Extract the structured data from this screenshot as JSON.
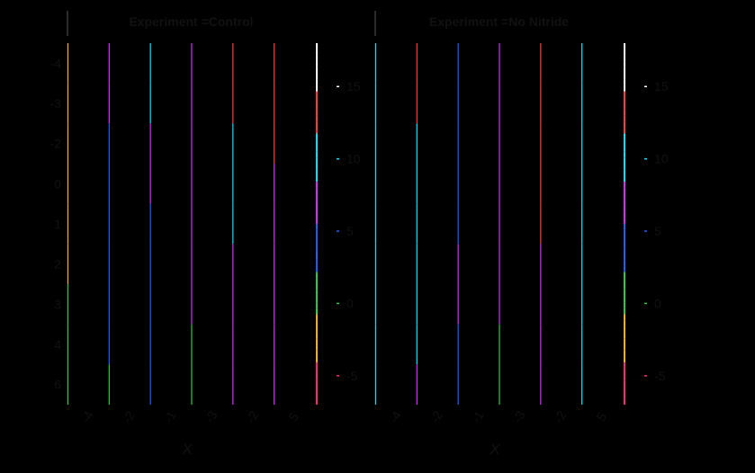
{
  "chart_data": {
    "type": "heatmap",
    "colors": [
      "#ff2a6d",
      "#ffb000",
      "#2ecc40",
      "#1f5fff",
      "#d62dff",
      "#00e5ff",
      "#ff3b3b",
      "#ffffff"
    ],
    "colorbar_ticks": [
      "-5",
      "0",
      "5",
      "10",
      "15"
    ],
    "colorbar_range": [
      -7,
      18
    ],
    "x_tick_labels": [
      "-4",
      "-2",
      "-1",
      "-3",
      "-2",
      "5"
    ],
    "y_tick_labels": [
      "-4",
      "-3",
      "-2",
      "0",
      "1",
      "2",
      "3",
      "4",
      "6"
    ],
    "xlabel": "X",
    "panels": [
      {
        "title": "Experiment =Control",
        "cells": [
          [
            -2,
            8,
            10,
            8,
            14,
            12
          ],
          [
            -2,
            8,
            10,
            8,
            14,
            12
          ],
          [
            -2,
            5,
            6,
            8,
            10,
            12
          ],
          [
            -2,
            5,
            6,
            8,
            10,
            6
          ],
          [
            -2,
            4,
            4,
            8,
            10,
            6
          ],
          [
            -2,
            4,
            3,
            8,
            7,
            6
          ],
          [
            0,
            4,
            3,
            8,
            7,
            6
          ],
          [
            0,
            4,
            5,
            0,
            7,
            6
          ],
          [
            0,
            2,
            5,
            0,
            7,
            6
          ]
        ]
      },
      {
        "title": "Experiment =No Nitride",
        "cells": [
          [
            10,
            14,
            5,
            8,
            12,
            11
          ],
          [
            10,
            14,
            5,
            8,
            12,
            11
          ],
          [
            10,
            11,
            5,
            8,
            12,
            11
          ],
          [
            10,
            11,
            5,
            8,
            12,
            9
          ],
          [
            10,
            11,
            5,
            8,
            12,
            9
          ],
          [
            10,
            11,
            6,
            8,
            7,
            9
          ],
          [
            10,
            11,
            6,
            8,
            7,
            9
          ],
          [
            10,
            11,
            3,
            2,
            7,
            9
          ],
          [
            10,
            6,
            3,
            2,
            7,
            9
          ]
        ]
      }
    ]
  }
}
